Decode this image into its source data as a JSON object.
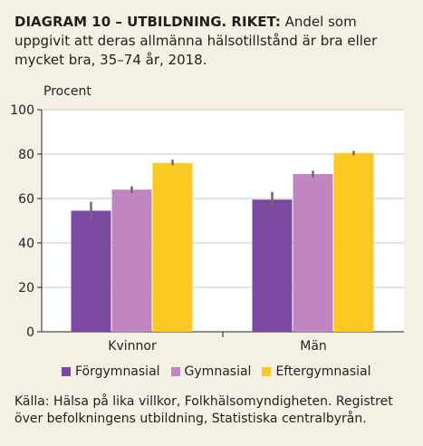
{
  "title": {
    "bold": "DIAGRAM 10 – UTBILDNING. RIKET:",
    "text": " Andel som uppgivit att deras allmänna hälsotillstånd är bra eller mycket bra, 35–74 år, 2018."
  },
  "chart_data": {
    "type": "bar",
    "ylabel": "Procent",
    "ylim": [
      0,
      100
    ],
    "yticks": [
      0,
      20,
      40,
      60,
      80,
      100
    ],
    "grid": true,
    "categories": [
      "Kvinnor",
      "Män"
    ],
    "series": [
      {
        "name": "Förgymnasial",
        "color": "#7b4aa0",
        "values": [
          54.5,
          59.5
        ],
        "ci": [
          [
            50.5,
            58.5
          ],
          [
            56,
            63
          ]
        ]
      },
      {
        "name": "Gymnasial",
        "color": "#c186c1",
        "values": [
          64,
          71
        ],
        "ci": [
          [
            62.5,
            65.5
          ],
          [
            69.5,
            72.5
          ]
        ]
      },
      {
        "name": "Eftergymnasial",
        "color": "#fcc923",
        "values": [
          76,
          80.5
        ],
        "ci": [
          [
            75,
            77.5
          ],
          [
            79.5,
            81.5
          ]
        ]
      }
    ],
    "legend_position": "bottom"
  },
  "source": "Källa: Hälsa på lika villkor, Folkhälsomyndigheten. Registret över befolkningens utbildning, Statistiska centralbyrån."
}
